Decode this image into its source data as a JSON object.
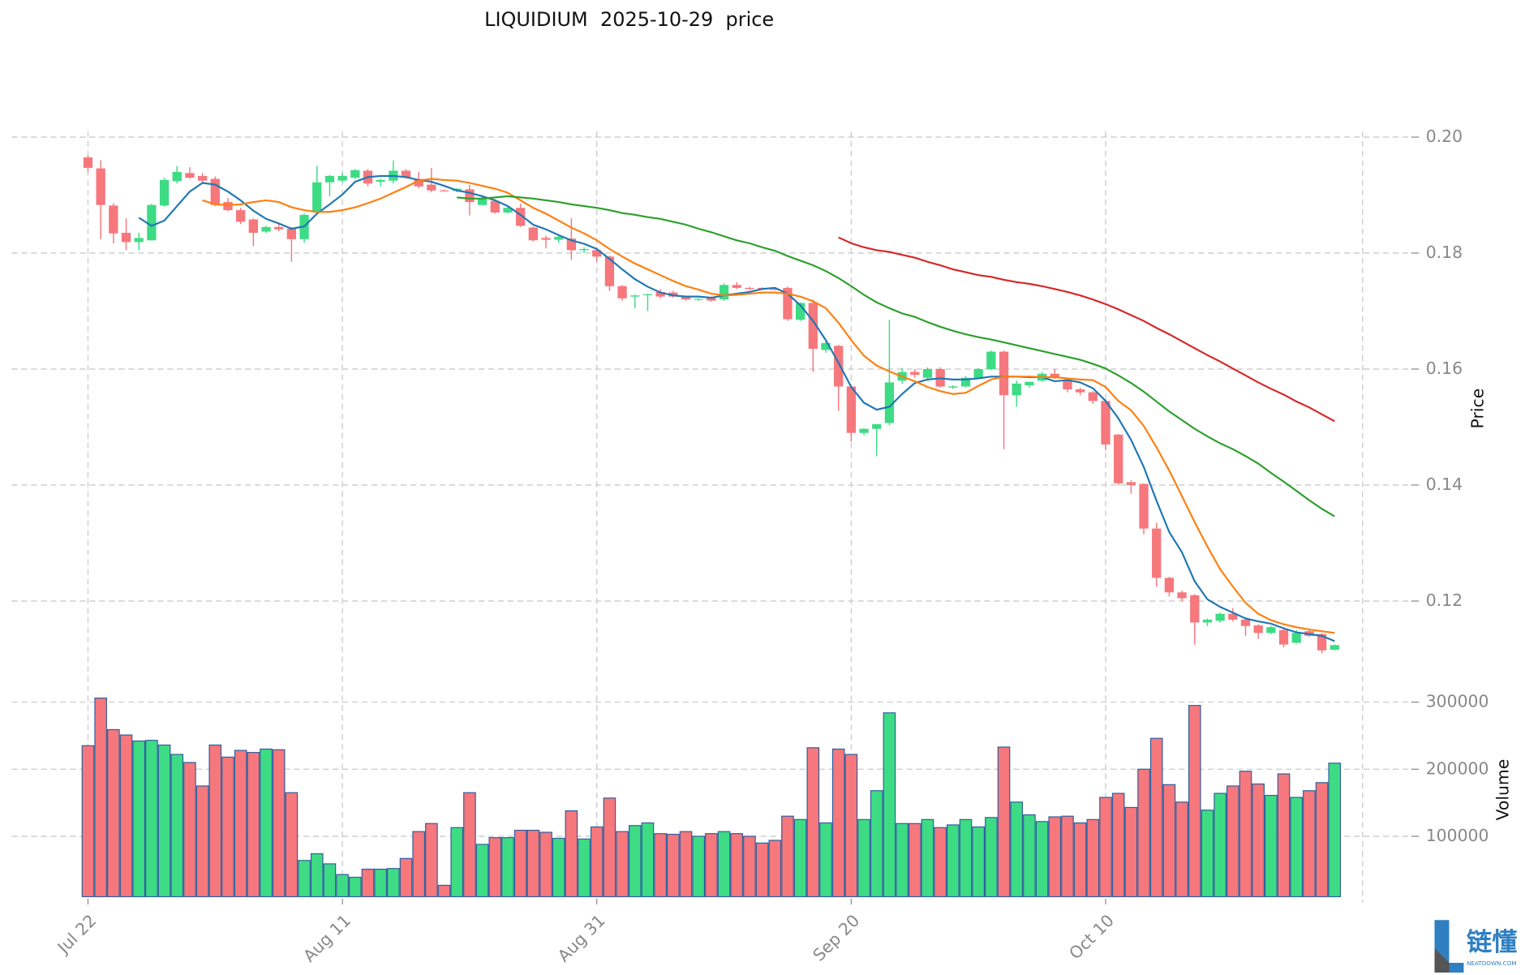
{
  "chart_data": {
    "type": "candlestick",
    "title": "LIQUIDIUM  2025-10-29  price",
    "ylabel": "Price",
    "grid": true,
    "up_color": "#3ddc84",
    "down_color": "#f6777c",
    "xlim": [
      -6,
      100.2
    ],
    "xticks": [
      {
        "value": 0,
        "label": "Jul 22"
      },
      {
        "value": 20,
        "label": "Aug 11"
      },
      {
        "value": 40,
        "label": "Aug 31"
      },
      {
        "value": 60,
        "label": "Sep 20"
      },
      {
        "value": 80,
        "label": "Oct 10"
      }
    ],
    "ylim": [
      0.109,
      0.201
    ],
    "yticks": [
      0.12,
      0.14,
      0.16,
      0.18,
      {
        "value": 0.2,
        "label": "0.20"
      }
    ],
    "open": [
      0.1965,
      0.1946,
      0.1882,
      0.1835,
      0.1819,
      0.1822,
      0.1882,
      0.1924,
      0.1938,
      0.1933,
      0.1928,
      0.1888,
      0.1874,
      0.1858,
      0.1837,
      0.1845,
      0.1842,
      0.1824,
      0.187,
      0.1922,
      0.1925,
      0.193,
      0.1942,
      0.1923,
      0.1925,
      0.1942,
      0.1928,
      0.1918,
      0.1908,
      0.1907,
      0.191,
      0.1883,
      0.189,
      0.187,
      0.1878,
      0.1844,
      0.1826,
      0.1823,
      0.1825,
      0.1805,
      0.1805,
      0.1794,
      0.1743,
      0.1725,
      0.1728,
      0.1733,
      0.1732,
      0.1725,
      0.172,
      0.1723,
      0.172,
      0.1745,
      0.174,
      0.174,
      0.1738,
      0.174,
      0.1685,
      0.1714,
      0.1633,
      0.164,
      0.157,
      0.149,
      0.1497,
      0.1507,
      0.158,
      0.1595,
      0.1585,
      0.16,
      0.1568,
      0.157,
      0.1585,
      0.16,
      0.163,
      0.1555,
      0.1572,
      0.158,
      0.1592,
      0.1582,
      0.1565,
      0.156,
      0.1545,
      0.1487,
      0.1405,
      0.1402,
      0.1325,
      0.124,
      0.1215,
      0.121,
      0.1163,
      0.1166,
      0.1178,
      0.1168,
      0.1158,
      0.1145,
      0.115,
      0.1128,
      0.1148,
      0.1143,
      0.1116
    ],
    "high": [
      0.1968,
      0.196,
      0.1886,
      0.186,
      0.1835,
      0.1885,
      0.193,
      0.195,
      0.1948,
      0.1938,
      0.1932,
      0.1895,
      0.1878,
      0.186,
      0.1847,
      0.185,
      0.1845,
      0.1868,
      0.195,
      0.1935,
      0.1938,
      0.1945,
      0.1945,
      0.1928,
      0.196,
      0.1945,
      0.194,
      0.1947,
      0.191,
      0.1912,
      0.1918,
      0.19,
      0.1893,
      0.188,
      0.1885,
      0.1846,
      0.183,
      0.183,
      0.186,
      0.181,
      0.181,
      0.1796,
      0.1745,
      0.1728,
      0.173,
      0.1738,
      0.1735,
      0.1726,
      0.1722,
      0.1725,
      0.1748,
      0.175,
      0.1742,
      0.1741,
      0.174,
      0.1742,
      0.1715,
      0.172,
      0.1648,
      0.1642,
      0.1572,
      0.1498,
      0.1505,
      0.1685,
      0.1602,
      0.16,
      0.1603,
      0.1603,
      0.1572,
      0.1588,
      0.1602,
      0.1632,
      0.1632,
      0.158,
      0.1578,
      0.1595,
      0.16,
      0.1585,
      0.1568,
      0.1562,
      0.1548,
      0.1488,
      0.1408,
      0.1403,
      0.1335,
      0.1242,
      0.1218,
      0.1212,
      0.117,
      0.118,
      0.1188,
      0.1172,
      0.116,
      0.1157,
      0.1152,
      0.115,
      0.1152,
      0.1145,
      0.1125
    ],
    "low": [
      0.194,
      0.1824,
      0.1817,
      0.1805,
      0.1805,
      0.1822,
      0.188,
      0.192,
      0.1928,
      0.1922,
      0.1881,
      0.1872,
      0.185,
      0.1812,
      0.1835,
      0.1838,
      0.1785,
      0.1818,
      0.1868,
      0.1898,
      0.1922,
      0.1928,
      0.1915,
      0.1915,
      0.192,
      0.1928,
      0.1912,
      0.1905,
      0.1907,
      0.1905,
      0.1865,
      0.1882,
      0.1868,
      0.1868,
      0.1845,
      0.182,
      0.1808,
      0.1818,
      0.1788,
      0.18,
      0.1785,
      0.1735,
      0.1718,
      0.1705,
      0.17,
      0.1722,
      0.1723,
      0.1718,
      0.1718,
      0.1716,
      0.1718,
      0.1738,
      0.1736,
      0.1738,
      0.1736,
      0.1683,
      0.1683,
      0.1595,
      0.1628,
      0.1528,
      0.1475,
      0.1486,
      0.145,
      0.1503,
      0.1575,
      0.1585,
      0.158,
      0.1568,
      0.1566,
      0.1568,
      0.1583,
      0.1598,
      0.1462,
      0.1535,
      0.1568,
      0.1578,
      0.1583,
      0.156,
      0.1555,
      0.154,
      0.146,
      0.14,
      0.1385,
      0.1315,
      0.1225,
      0.1208,
      0.12,
      0.1125,
      0.1157,
      0.1163,
      0.1165,
      0.114,
      0.1135,
      0.1143,
      0.112,
      0.1127,
      0.1138,
      0.111,
      0.1115
    ],
    "close": [
      0.1947,
      0.1883,
      0.1834,
      0.1819,
      0.1826,
      0.1883,
      0.1926,
      0.194,
      0.193,
      0.1925,
      0.1883,
      0.1874,
      0.1854,
      0.1835,
      0.1845,
      0.1841,
      0.1824,
      0.1866,
      0.1922,
      0.1933,
      0.1933,
      0.1943,
      0.192,
      0.1926,
      0.1942,
      0.193,
      0.1915,
      0.1908,
      0.1907,
      0.1911,
      0.1888,
      0.1894,
      0.187,
      0.1878,
      0.1847,
      0.1822,
      0.1823,
      0.1828,
      0.1805,
      0.1807,
      0.1794,
      0.1743,
      0.1722,
      0.1727,
      0.1729,
      0.1725,
      0.1725,
      0.172,
      0.1721,
      0.1718,
      0.1745,
      0.174,
      0.1738,
      0.1738,
      0.1737,
      0.1686,
      0.1714,
      0.1635,
      0.1645,
      0.157,
      0.149,
      0.1497,
      0.1505,
      0.1577,
      0.1595,
      0.159,
      0.16,
      0.157,
      0.157,
      0.1585,
      0.16,
      0.163,
      0.1555,
      0.1575,
      0.1578,
      0.1592,
      0.1585,
      0.1565,
      0.156,
      0.1545,
      0.147,
      0.1403,
      0.14,
      0.1325,
      0.124,
      0.1215,
      0.1205,
      0.1163,
      0.1168,
      0.1178,
      0.1168,
      0.1157,
      0.1145,
      0.1155,
      0.1125,
      0.1145,
      0.114,
      0.1115,
      0.1124
    ],
    "series": [
      {
        "color": "#1f77b4",
        "values": [
          null,
          null,
          null,
          null,
          0.1861,
          0.1847,
          0.1856,
          0.1881,
          0.1906,
          0.1921,
          0.1918,
          0.1906,
          0.1891,
          0.1873,
          0.1859,
          0.1851,
          0.1842,
          0.1846,
          0.1868,
          0.1884,
          0.1901,
          0.1923,
          0.1931,
          0.1933,
          0.1933,
          0.1931,
          0.1926,
          0.1923,
          0.1916,
          0.1908,
          0.1904,
          0.1898,
          0.1891,
          0.1881,
          0.1866,
          0.1849,
          0.1841,
          0.1831,
          0.1822,
          0.1816,
          0.1807,
          0.179,
          0.1772,
          0.1755,
          0.1742,
          0.1732,
          0.1727,
          0.1725,
          0.1725,
          0.1723,
          0.1727,
          0.173,
          0.1733,
          0.1738,
          0.174,
          0.173,
          0.171,
          0.1683,
          0.165,
          0.1611,
          0.1569,
          0.1542,
          0.153,
          0.1535,
          0.1557,
          0.1576,
          0.1582,
          0.1584,
          0.1582,
          0.1582,
          0.1584,
          0.1587,
          0.1587,
          0.1587,
          0.1586,
          0.1586,
          0.1579,
          0.1581,
          0.1577,
          0.1567,
          0.1545,
          0.1515,
          0.1478,
          0.1431,
          0.1373,
          0.1319,
          0.1284,
          0.1234,
          0.1203,
          0.119,
          0.118,
          0.117,
          0.1165,
          0.1161,
          0.1153,
          0.1146,
          0.1143,
          0.114,
          0.1131
        ]
      },
      {
        "color": "#ff7f0e",
        "values": [
          null,
          null,
          null,
          null,
          null,
          null,
          null,
          null,
          null,
          0.1891,
          0.1884,
          0.1883,
          0.1884,
          0.1888,
          0.1891,
          0.1888,
          0.1879,
          0.1874,
          0.1871,
          0.1871,
          0.1874,
          0.1879,
          0.1886,
          0.1894,
          0.1904,
          0.1914,
          0.1925,
          0.1928,
          0.1926,
          0.1925,
          0.1921,
          0.1916,
          0.1911,
          0.1904,
          0.1891,
          0.1878,
          0.1868,
          0.1856,
          0.1844,
          0.1834,
          0.1822,
          0.1807,
          0.1794,
          0.1782,
          0.1772,
          0.1762,
          0.1752,
          0.1743,
          0.1737,
          0.173,
          0.1727,
          0.1728,
          0.173,
          0.1732,
          0.1732,
          0.173,
          0.1725,
          0.1717,
          0.1705,
          0.168,
          0.165,
          0.1623,
          0.1606,
          0.1596,
          0.1587,
          0.1579,
          0.1569,
          0.1562,
          0.1557,
          0.1559,
          0.1571,
          0.1582,
          0.1587,
          0.1587,
          0.1587,
          0.1586,
          0.1586,
          0.1584,
          0.1582,
          0.1581,
          0.1569,
          0.1545,
          0.1529,
          0.1502,
          0.1465,
          0.1425,
          0.1381,
          0.1336,
          0.1294,
          0.1255,
          0.1225,
          0.1197,
          0.1178,
          0.1167,
          0.116,
          0.1155,
          0.1151,
          0.1148,
          0.1145
        ]
      },
      {
        "color": "#2ca02c",
        "values": [
          null,
          null,
          null,
          null,
          null,
          null,
          null,
          null,
          null,
          null,
          null,
          null,
          null,
          null,
          null,
          null,
          null,
          null,
          null,
          null,
          null,
          null,
          null,
          null,
          null,
          null,
          null,
          null,
          null,
          0.1896,
          0.1894,
          0.1894,
          0.1896,
          0.1898,
          0.1896,
          0.1894,
          0.1891,
          0.1888,
          0.1884,
          0.1881,
          0.1878,
          0.1874,
          0.1869,
          0.1866,
          0.1862,
          0.1859,
          0.1854,
          0.1849,
          0.1842,
          0.1836,
          0.1829,
          0.1822,
          0.1817,
          0.181,
          0.1804,
          0.1795,
          0.1787,
          0.1779,
          0.1769,
          0.1757,
          0.1743,
          0.1728,
          0.1715,
          0.1705,
          0.1696,
          0.169,
          0.1681,
          0.1673,
          0.1666,
          0.166,
          0.1655,
          0.1651,
          0.1646,
          0.1641,
          0.1636,
          0.1631,
          0.1626,
          0.1621,
          0.1616,
          0.1609,
          0.1601,
          0.1589,
          0.1576,
          0.1561,
          0.1544,
          0.1527,
          0.1512,
          0.1497,
          0.1484,
          0.1472,
          0.1462,
          0.145,
          0.1437,
          0.1421,
          0.1406,
          0.139,
          0.1374,
          0.1359,
          0.1346
        ]
      },
      {
        "color": "#d62728",
        "values": [
          null,
          null,
          null,
          null,
          null,
          null,
          null,
          null,
          null,
          null,
          null,
          null,
          null,
          null,
          null,
          null,
          null,
          null,
          null,
          null,
          null,
          null,
          null,
          null,
          null,
          null,
          null,
          null,
          null,
          null,
          null,
          null,
          null,
          null,
          null,
          null,
          null,
          null,
          null,
          null,
          null,
          null,
          null,
          null,
          null,
          null,
          null,
          null,
          null,
          null,
          null,
          null,
          null,
          null,
          null,
          null,
          null,
          null,
          null,
          0.1827,
          0.1817,
          0.181,
          0.1805,
          0.1802,
          0.1797,
          0.1792,
          0.1785,
          0.1779,
          0.1772,
          0.1767,
          0.1762,
          0.1759,
          0.1754,
          0.175,
          0.1747,
          0.1743,
          0.1738,
          0.1733,
          0.1727,
          0.172,
          0.1712,
          0.1703,
          0.1693,
          0.1683,
          0.1671,
          0.166,
          0.1648,
          0.1636,
          0.1624,
          0.1613,
          0.1601,
          0.1589,
          0.1577,
          0.1566,
          0.1556,
          0.1544,
          0.1534,
          0.1522,
          0.151
        ]
      }
    ],
    "volume": {
      "label": "Volume",
      "edge_color": "#2f5f9e",
      "ylim": [
        10000,
        310000
      ],
      "yticks": [
        100000,
        200000,
        300000
      ],
      "values": [
        235000,
        306000,
        259000,
        251000,
        242000,
        243000,
        236000,
        222000,
        210000,
        175000,
        236000,
        218000,
        228000,
        225000,
        230000,
        229000,
        165000,
        64000,
        74000,
        59000,
        43000,
        39000,
        51000,
        51000,
        52000,
        67000,
        107000,
        119000,
        27000,
        113000,
        165000,
        88000,
        98000,
        98000,
        109000,
        109000,
        106000,
        97000,
        138000,
        96000,
        114000,
        157000,
        107000,
        116000,
        120000,
        104000,
        103000,
        107000,
        100000,
        104000,
        107000,
        104000,
        100000,
        90000,
        94000,
        130000,
        125000,
        232000,
        120000,
        230000,
        222000,
        125000,
        168000,
        284000,
        119000,
        119000,
        125000,
        113000,
        117000,
        125000,
        114000,
        128000,
        233000,
        151000,
        132000,
        122000,
        129000,
        130000,
        120000,
        125000,
        158000,
        164000,
        143000,
        200000,
        246000,
        177000,
        151000,
        295000,
        139000,
        164000,
        175000,
        197000,
        178000,
        161000,
        193000,
        158000,
        168000,
        180000,
        209000
      ]
    },
    "watermark": {
      "text": "链懂",
      "subtext": "NEATDOWN.COM"
    }
  }
}
